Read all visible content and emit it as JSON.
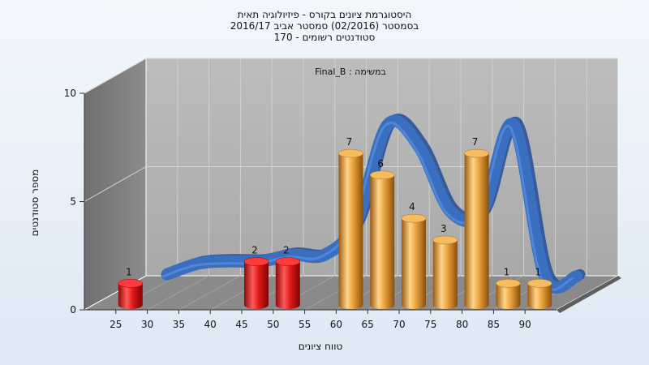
{
  "chart_data": {
    "type": "bar",
    "title": [
      "היסטוגרמת ציונים בקורס - פיזיולוגיה תאית",
      "בסמסטר  (02/2016)  סמסטר אביב 2016/17",
      "סטודנטים רשומים - 170"
    ],
    "annotation": "Final_B : במשימה",
    "xlabel": "טווח ציונים",
    "ylabel": "מספר סטודנטים",
    "x_ticks": [
      "25",
      "30",
      "35",
      "40",
      "45",
      "50",
      "55",
      "60",
      "65",
      "70",
      "75",
      "80",
      "85",
      "90"
    ],
    "y_ticks": [
      "0",
      "5",
      "10"
    ],
    "ylim": [
      0,
      10
    ],
    "grid": true,
    "series": [
      {
        "type": "bar",
        "categories": [
          "25",
          "45",
          "50",
          "60",
          "65",
          "70",
          "75",
          "80",
          "85",
          "90"
        ],
        "values": [
          1,
          2,
          2,
          7,
          6,
          4,
          3,
          7,
          1,
          1
        ],
        "colors": [
          "#e02020",
          "#e02020",
          "#e02020",
          "#e8a23a",
          "#e8a23a",
          "#e8a23a",
          "#e8a23a",
          "#e8a23a",
          "#e8a23a",
          "#e8a23a"
        ]
      },
      {
        "type": "line",
        "x": [
          30,
          35,
          40,
          45,
          50,
          55,
          60,
          65,
          70,
          75,
          80,
          85,
          90,
          95
        ],
        "values": [
          1.1,
          1.6,
          1.7,
          1.7,
          2.0,
          2.0,
          3.5,
          8.0,
          7.0,
          4.0,
          4.0,
          8.0,
          1.0,
          1.0
        ],
        "color": "#3a6fc0"
      }
    ]
  }
}
